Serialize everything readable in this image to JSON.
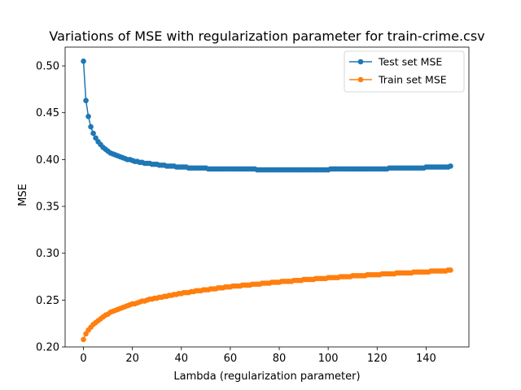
{
  "chart_data": {
    "type": "line",
    "title": "Variations of MSE with regularization parameter for train-crime.csv",
    "xlabel": "Lambda (regularization parameter)",
    "ylabel": "MSE",
    "xlim": [
      -7.5,
      157.5
    ],
    "ylim": [
      0.2,
      0.52
    ],
    "x_ticks": [
      0,
      20,
      40,
      60,
      80,
      100,
      120,
      140
    ],
    "x_tick_labels": [
      "0",
      "20",
      "40",
      "60",
      "80",
      "100",
      "120",
      "140"
    ],
    "y_ticks": [
      0.2,
      0.25,
      0.3,
      0.35,
      0.4,
      0.45,
      0.5
    ],
    "y_tick_labels": [
      "0.20",
      "0.25",
      "0.30",
      "0.35",
      "0.40",
      "0.45",
      "0.50"
    ],
    "grid": false,
    "legend_position": "top-right",
    "x": [
      0,
      1,
      2,
      3,
      4,
      5,
      6,
      7,
      8,
      9,
      10,
      11,
      12,
      13,
      14,
      15,
      16,
      17,
      18,
      19,
      20,
      21,
      22,
      23,
      24,
      25,
      26,
      27,
      28,
      29,
      30,
      31,
      32,
      33,
      34,
      35,
      36,
      37,
      38,
      39,
      40,
      41,
      42,
      43,
      44,
      45,
      46,
      47,
      48,
      49,
      50,
      51,
      52,
      53,
      54,
      55,
      56,
      57,
      58,
      59,
      60,
      61,
      62,
      63,
      64,
      65,
      66,
      67,
      68,
      69,
      70,
      71,
      72,
      73,
      74,
      75,
      76,
      77,
      78,
      79,
      80,
      81,
      82,
      83,
      84,
      85,
      86,
      87,
      88,
      89,
      90,
      91,
      92,
      93,
      94,
      95,
      96,
      97,
      98,
      99,
      100,
      101,
      102,
      103,
      104,
      105,
      106,
      107,
      108,
      109,
      110,
      111,
      112,
      113,
      114,
      115,
      116,
      117,
      118,
      119,
      120,
      121,
      122,
      123,
      124,
      125,
      126,
      127,
      128,
      129,
      130,
      131,
      132,
      133,
      134,
      135,
      136,
      137,
      138,
      139,
      140,
      141,
      142,
      143,
      144,
      145,
      146,
      147,
      148,
      149,
      150
    ],
    "series": [
      {
        "name": "Test set MSE",
        "color": "#1f77b4",
        "values": [
          0.505,
          0.463,
          0.446,
          0.435,
          0.428,
          0.423,
          0.419,
          0.416,
          0.413,
          0.411,
          0.409,
          0.407,
          0.406,
          0.405,
          0.404,
          0.403,
          0.402,
          0.401,
          0.4,
          0.4,
          0.399,
          0.398,
          0.398,
          0.397,
          0.397,
          0.396,
          0.396,
          0.396,
          0.395,
          0.395,
          0.395,
          0.394,
          0.394,
          0.394,
          0.393,
          0.393,
          0.393,
          0.393,
          0.392,
          0.392,
          0.392,
          0.392,
          0.392,
          0.391,
          0.391,
          0.391,
          0.391,
          0.391,
          0.391,
          0.391,
          0.391,
          0.39,
          0.39,
          0.39,
          0.39,
          0.39,
          0.39,
          0.39,
          0.39,
          0.39,
          0.39,
          0.39,
          0.39,
          0.39,
          0.39,
          0.39,
          0.39,
          0.39,
          0.39,
          0.39,
          0.39,
          0.389,
          0.389,
          0.389,
          0.389,
          0.389,
          0.389,
          0.389,
          0.389,
          0.389,
          0.389,
          0.389,
          0.389,
          0.389,
          0.389,
          0.389,
          0.389,
          0.389,
          0.389,
          0.389,
          0.389,
          0.389,
          0.389,
          0.389,
          0.389,
          0.389,
          0.389,
          0.389,
          0.389,
          0.389,
          0.389,
          0.39,
          0.39,
          0.39,
          0.39,
          0.39,
          0.39,
          0.39,
          0.39,
          0.39,
          0.39,
          0.39,
          0.39,
          0.39,
          0.39,
          0.39,
          0.39,
          0.39,
          0.39,
          0.39,
          0.39,
          0.39,
          0.39,
          0.39,
          0.39,
          0.391,
          0.391,
          0.391,
          0.391,
          0.391,
          0.391,
          0.391,
          0.391,
          0.391,
          0.391,
          0.391,
          0.391,
          0.391,
          0.391,
          0.391,
          0.392,
          0.392,
          0.392,
          0.392,
          0.392,
          0.392,
          0.392,
          0.392,
          0.392,
          0.392,
          0.393
        ]
      },
      {
        "name": "Train set MSE",
        "color": "#ff7f0e",
        "values": [
          0.208,
          0.214,
          0.218,
          0.221,
          0.224,
          0.226,
          0.228,
          0.23,
          0.232,
          0.234,
          0.235,
          0.237,
          0.238,
          0.239,
          0.24,
          0.241,
          0.242,
          0.243,
          0.244,
          0.245,
          0.246,
          0.246,
          0.247,
          0.248,
          0.249,
          0.249,
          0.25,
          0.251,
          0.251,
          0.252,
          0.252,
          0.253,
          0.253,
          0.254,
          0.254,
          0.255,
          0.255,
          0.256,
          0.256,
          0.257,
          0.257,
          0.258,
          0.258,
          0.258,
          0.259,
          0.259,
          0.26,
          0.26,
          0.26,
          0.261,
          0.261,
          0.261,
          0.262,
          0.262,
          0.262,
          0.263,
          0.263,
          0.263,
          0.264,
          0.264,
          0.264,
          0.265,
          0.265,
          0.265,
          0.265,
          0.266,
          0.266,
          0.266,
          0.266,
          0.267,
          0.267,
          0.267,
          0.267,
          0.268,
          0.268,
          0.268,
          0.268,
          0.269,
          0.269,
          0.269,
          0.269,
          0.27,
          0.27,
          0.27,
          0.27,
          0.27,
          0.271,
          0.271,
          0.271,
          0.271,
          0.272,
          0.272,
          0.272,
          0.272,
          0.272,
          0.273,
          0.273,
          0.273,
          0.273,
          0.273,
          0.274,
          0.274,
          0.274,
          0.274,
          0.274,
          0.275,
          0.275,
          0.275,
          0.275,
          0.275,
          0.276,
          0.276,
          0.276,
          0.276,
          0.276,
          0.276,
          0.277,
          0.277,
          0.277,
          0.277,
          0.277,
          0.277,
          0.278,
          0.278,
          0.278,
          0.278,
          0.278,
          0.278,
          0.279,
          0.279,
          0.279,
          0.279,
          0.279,
          0.279,
          0.279,
          0.28,
          0.28,
          0.28,
          0.28,
          0.28,
          0.28,
          0.28,
          0.281,
          0.281,
          0.281,
          0.281,
          0.281,
          0.281,
          0.281,
          0.282,
          0.282
        ]
      }
    ]
  }
}
